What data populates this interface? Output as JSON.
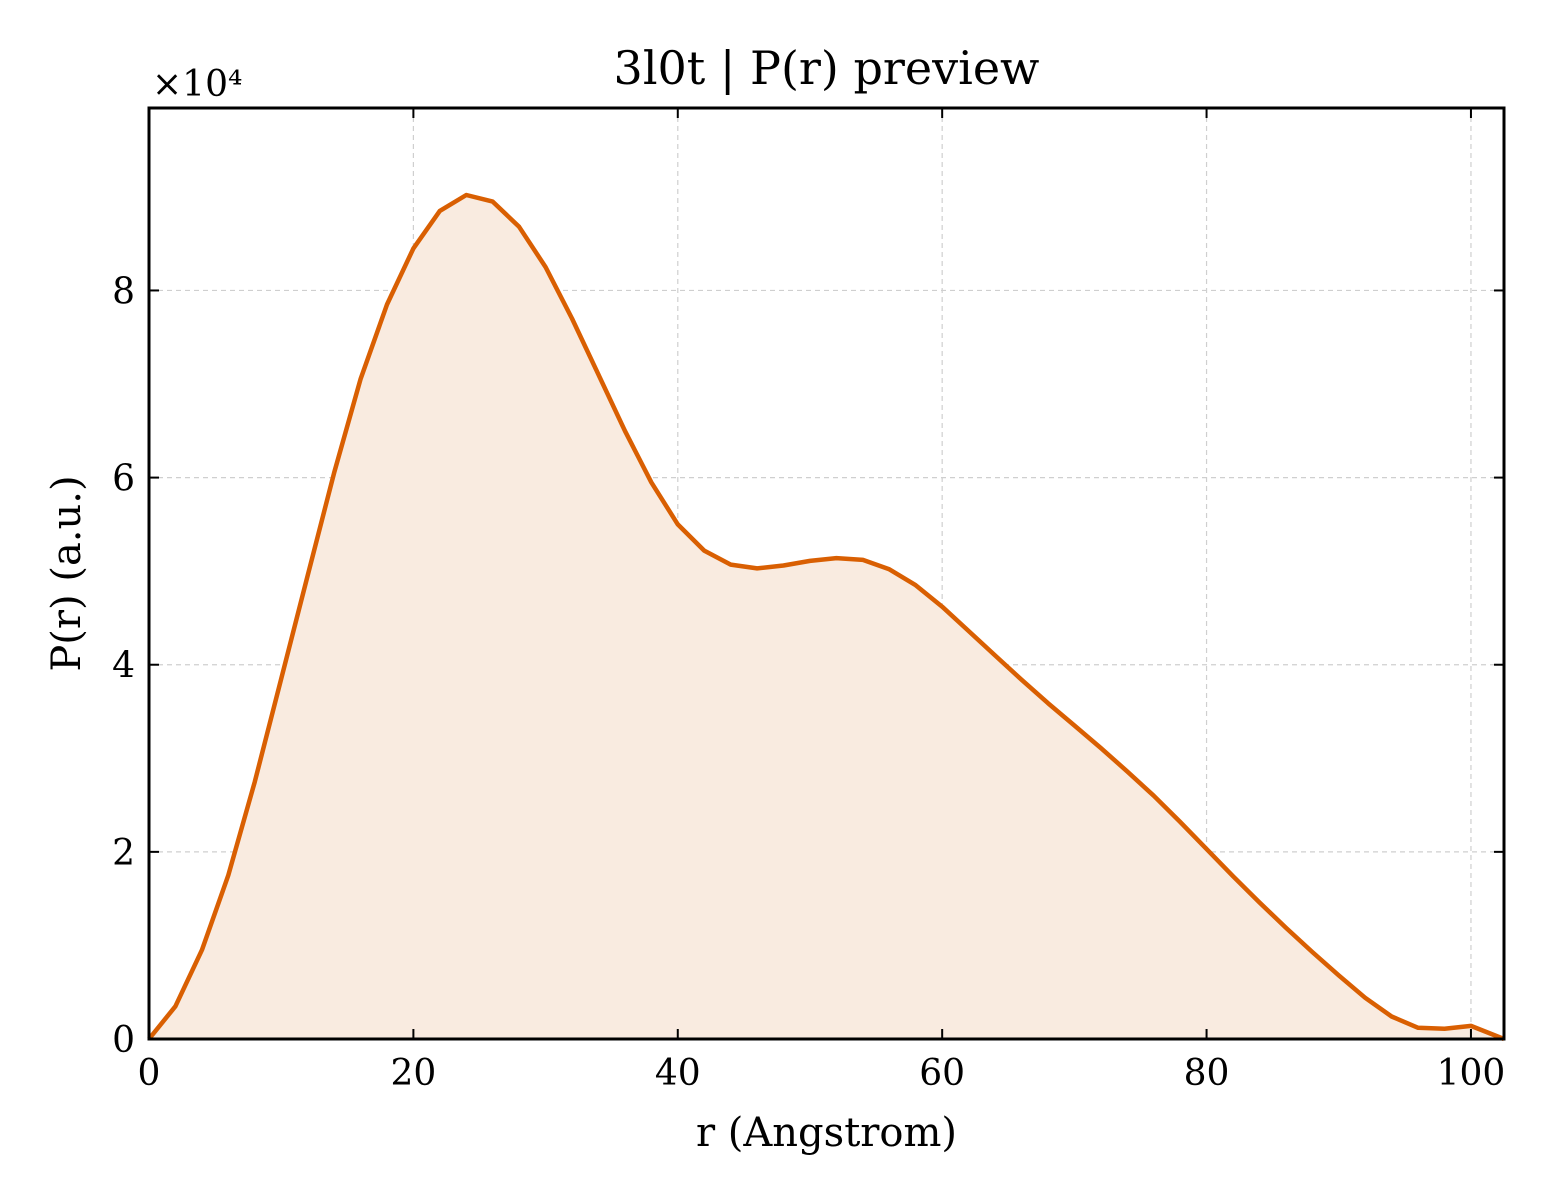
{
  "chart_data": {
    "type": "area",
    "title": "3l0t | P(r) preview",
    "xlabel": "r (Angstrom)",
    "ylabel": "P(r) (a.u.)",
    "y_offset_label": "×10⁴",
    "xlim": [
      0,
      102.5
    ],
    "ylim": [
      0,
      9.95
    ],
    "xticks": [
      0,
      20,
      40,
      60,
      80,
      100
    ],
    "yticks": [
      0,
      2,
      4,
      6,
      8
    ],
    "xtick_labels": [
      "0",
      "20",
      "40",
      "60",
      "80",
      "100"
    ],
    "ytick_labels": [
      "0",
      "2",
      "4",
      "6",
      "8"
    ],
    "grid": true,
    "line_color": "#d95f02",
    "fill_color": "#f9ebe0",
    "series": [
      {
        "x": [
          0,
          2,
          4,
          6,
          8,
          10,
          12,
          14,
          16,
          18,
          20,
          22,
          24,
          26,
          28,
          30,
          32,
          34,
          36,
          38,
          40,
          42,
          44,
          46,
          48,
          50,
          52,
          54,
          56,
          58,
          60,
          62,
          64,
          66,
          68,
          70,
          72,
          74,
          76,
          78,
          80,
          82,
          84,
          86,
          88,
          90,
          92,
          94,
          96,
          98,
          100,
          102.5
        ],
        "y": [
          0.0,
          0.35,
          0.95,
          1.75,
          2.75,
          3.85,
          4.95,
          6.05,
          7.05,
          7.85,
          8.45,
          8.85,
          9.02,
          8.95,
          8.68,
          8.25,
          7.7,
          7.1,
          6.5,
          5.95,
          5.5,
          5.22,
          5.07,
          5.03,
          5.06,
          5.11,
          5.14,
          5.12,
          5.02,
          4.85,
          4.62,
          4.36,
          4.1,
          3.84,
          3.59,
          3.35,
          3.11,
          2.86,
          2.6,
          2.32,
          2.03,
          1.74,
          1.46,
          1.19,
          0.93,
          0.68,
          0.44,
          0.24,
          0.12,
          0.11,
          0.14,
          0.0
        ]
      }
    ]
  }
}
